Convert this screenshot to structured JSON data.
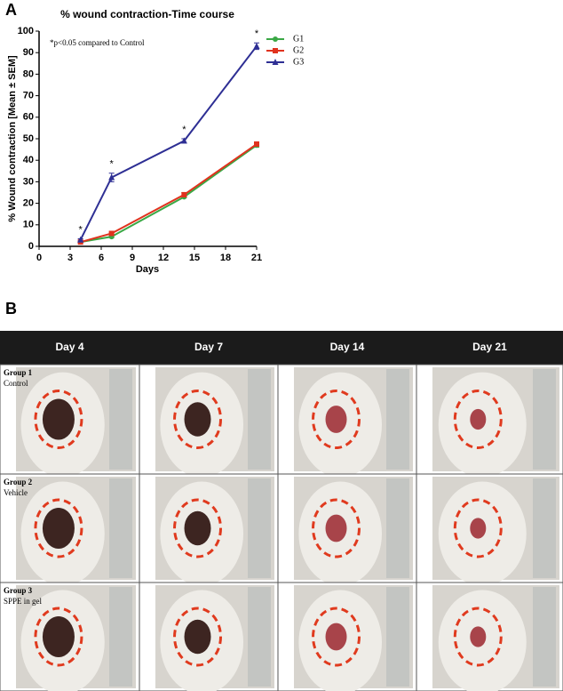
{
  "panel_labels": [
    "A",
    "B"
  ],
  "chart_data": {
    "type": "line",
    "title": "% wound contraction-Time course",
    "x_label": "Days",
    "y_label": "% Wound contraction [Mean ± SEM]",
    "annotation": "*p<0.05 compared to Control",
    "x": [
      4,
      7,
      14,
      21
    ],
    "series": [
      {
        "name": "G1",
        "color": "#3aa845",
        "marker": "circle",
        "values": [
          2,
          4.5,
          23,
          47
        ],
        "errors": [
          0.3,
          0.5,
          0.5,
          1
        ]
      },
      {
        "name": "G2",
        "color": "#e0321e",
        "marker": "square",
        "values": [
          2,
          6,
          24,
          47.5
        ],
        "errors": [
          0.3,
          0.5,
          1,
          1
        ]
      },
      {
        "name": "G3",
        "color": "#2e2f94",
        "marker": "triangle",
        "values": [
          3,
          32,
          49,
          93
        ],
        "errors": [
          0.5,
          2,
          1,
          1.5
        ]
      }
    ],
    "significance": [
      "*",
      "*",
      "*",
      "*"
    ],
    "xlim": [
      0,
      21
    ],
    "xticks": [
      0,
      3,
      6,
      9,
      12,
      15,
      18,
      21
    ],
    "ylim": [
      0,
      100
    ],
    "yticks": [
      0,
      10,
      20,
      30,
      40,
      50,
      60,
      70,
      80,
      90,
      100
    ],
    "grid": false,
    "legend": "right"
  },
  "photo_grid": {
    "columns": [
      "Day 4",
      "Day 7",
      "Day 14",
      "Day 21"
    ],
    "rows": [
      {
        "group": "Group 1",
        "label": "Control"
      },
      {
        "group": "Group 2",
        "label": "Vehicle"
      },
      {
        "group": "Group 3",
        "label": "SPPE in gel"
      }
    ]
  }
}
